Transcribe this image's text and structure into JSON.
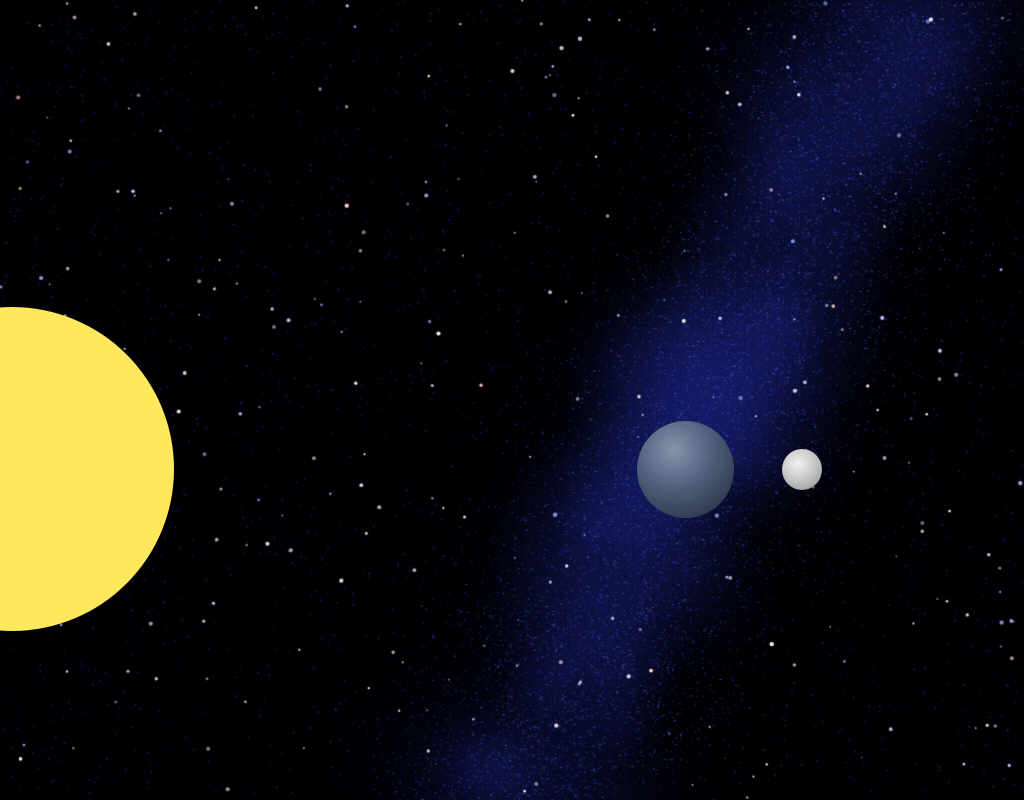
{
  "scene": {
    "background_color": "#000003",
    "galaxy_band_color": "#1a1f7a",
    "galaxy_highlight_color": "#7a3fa0",
    "star_colors": [
      "#ffffff",
      "#c8d0ff",
      "#ffd8e8",
      "#9fb4ff"
    ]
  },
  "bodies": {
    "sun": {
      "color": "#ffe85c"
    },
    "earth": {
      "color_light": "#8494ad",
      "color_dark": "#1c2636"
    },
    "moon": {
      "color_light": "#f2f2f2",
      "color_dark": "#8c8c8c"
    }
  }
}
